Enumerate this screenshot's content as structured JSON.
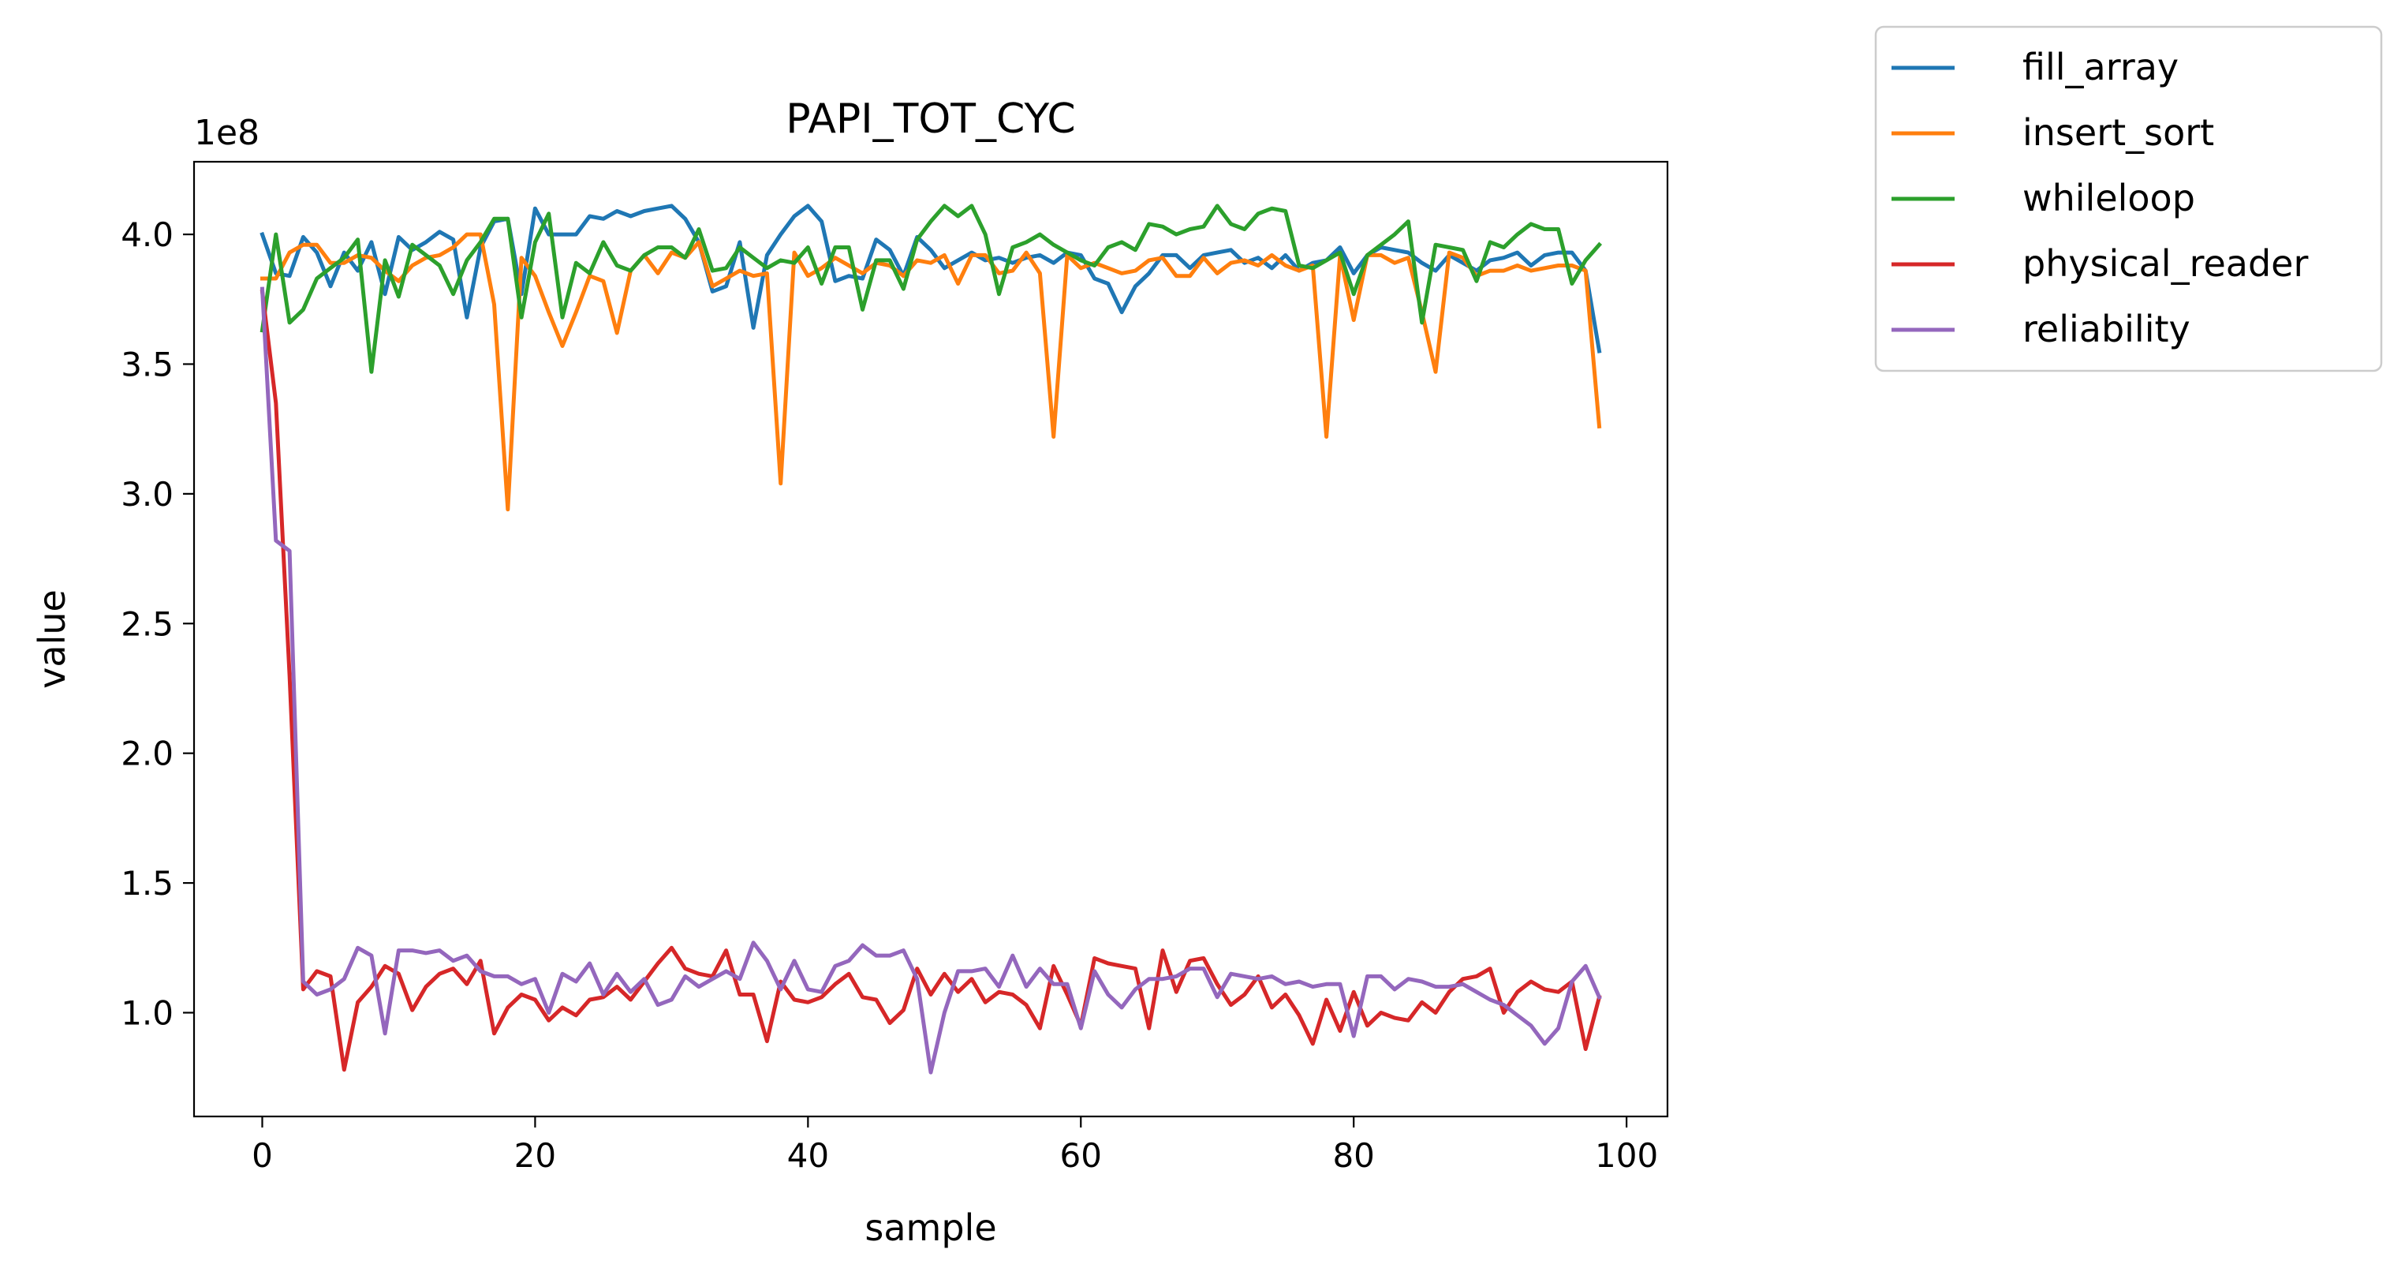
{
  "chart_data": {
    "type": "line",
    "title": "PAPI_TOT_CYC",
    "xlabel": "sample",
    "ylabel": "value",
    "y_scale_label": "1e8",
    "y_multiplier": 100000000,
    "xlim": [
      -5,
      103
    ],
    "ylim": [
      0.6,
      4.28
    ],
    "xticks": [
      0,
      20,
      40,
      60,
      80,
      100
    ],
    "xtick_labels": [
      "0",
      "20",
      "40",
      "60",
      "80",
      "100"
    ],
    "yticks": [
      1.0,
      1.5,
      2.0,
      2.5,
      3.0,
      3.5,
      4.0
    ],
    "ytick_labels": [
      "1.0",
      "1.5",
      "2.0",
      "2.5",
      "3.0",
      "3.5",
      "4.0"
    ],
    "grid": false,
    "legend_position": "outside upper right",
    "x_start": 0,
    "series": [
      {
        "name": "fill_array",
        "color": "#1f77b4",
        "values": [
          4.0,
          3.85,
          3.84,
          3.99,
          3.93,
          3.8,
          3.93,
          3.86,
          3.97,
          3.77,
          3.99,
          3.94,
          3.97,
          4.01,
          3.98,
          3.68,
          3.95,
          4.05,
          4.06,
          3.77,
          4.1,
          4.0,
          4.0,
          4.0,
          4.07,
          4.06,
          4.09,
          4.07,
          4.09,
          4.1,
          4.11,
          4.06,
          3.97,
          3.78,
          3.8,
          3.97,
          3.64,
          3.92,
          4.0,
          4.07,
          4.11,
          4.05,
          3.82,
          3.84,
          3.83,
          3.98,
          3.94,
          3.84,
          3.99,
          3.94,
          3.87,
          3.9,
          3.93,
          3.9,
          3.91,
          3.89,
          3.91,
          3.92,
          3.89,
          3.93,
          3.92,
          3.83,
          3.81,
          3.7,
          3.8,
          3.85,
          3.92,
          3.92,
          3.87,
          3.92,
          3.93,
          3.94,
          3.89,
          3.91,
          3.87,
          3.92,
          3.86,
          3.89,
          3.9,
          3.95,
          3.85,
          3.92,
          3.95,
          3.94,
          3.93,
          3.89,
          3.86,
          3.92,
          3.89,
          3.86,
          3.9,
          3.91,
          3.93,
          3.88,
          3.92,
          3.93,
          3.93,
          3.86,
          3.55
        ]
      },
      {
        "name": "insert_sort",
        "color": "#ff7f0e",
        "values": [
          3.83,
          3.83,
          3.93,
          3.96,
          3.96,
          3.89,
          3.89,
          3.92,
          3.91,
          3.86,
          3.82,
          3.88,
          3.91,
          3.92,
          3.95,
          4.0,
          4.0,
          3.73,
          2.94,
          3.91,
          3.84,
          3.7,
          3.57,
          3.7,
          3.84,
          3.82,
          3.62,
          3.86,
          3.92,
          3.85,
          3.93,
          3.91,
          3.97,
          3.8,
          3.83,
          3.86,
          3.84,
          3.85,
          3.04,
          3.93,
          3.84,
          3.87,
          3.91,
          3.88,
          3.85,
          3.89,
          3.88,
          3.84,
          3.9,
          3.89,
          3.92,
          3.81,
          3.92,
          3.92,
          3.85,
          3.86,
          3.93,
          3.85,
          3.22,
          3.92,
          3.87,
          3.89,
          3.87,
          3.85,
          3.86,
          3.9,
          3.91,
          3.84,
          3.84,
          3.91,
          3.85,
          3.89,
          3.9,
          3.88,
          3.92,
          3.88,
          3.86,
          3.88,
          3.22,
          3.92,
          3.67,
          3.92,
          3.92,
          3.89,
          3.91,
          3.7,
          3.47,
          3.93,
          3.91,
          3.84,
          3.86,
          3.86,
          3.88,
          3.86,
          3.87,
          3.88,
          3.88,
          3.86,
          3.26
        ]
      },
      {
        "name": "whileloop",
        "color": "#2ca02c",
        "values": [
          3.63,
          4.0,
          3.66,
          3.71,
          3.83,
          3.87,
          3.91,
          3.98,
          3.47,
          3.9,
          3.76,
          3.96,
          3.92,
          3.88,
          3.77,
          3.9,
          3.97,
          4.06,
          4.06,
          3.68,
          3.97,
          4.08,
          3.68,
          3.89,
          3.85,
          3.97,
          3.88,
          3.86,
          3.92,
          3.95,
          3.95,
          3.91,
          4.02,
          3.86,
          3.87,
          3.95,
          3.91,
          3.87,
          3.9,
          3.89,
          3.95,
          3.81,
          3.95,
          3.95,
          3.71,
          3.9,
          3.9,
          3.79,
          3.98,
          4.05,
          4.11,
          4.07,
          4.11,
          4.0,
          3.77,
          3.95,
          3.97,
          4.0,
          3.96,
          3.93,
          3.9,
          3.88,
          3.95,
          3.97,
          3.94,
          4.04,
          4.03,
          4.0,
          4.02,
          4.03,
          4.11,
          4.04,
          4.02,
          4.08,
          4.1,
          4.09,
          3.88,
          3.87,
          3.9,
          3.93,
          3.77,
          3.92,
          3.96,
          4.0,
          4.05,
          3.66,
          3.96,
          3.95,
          3.94,
          3.82,
          3.97,
          3.95,
          4.0,
          4.04,
          4.02,
          4.02,
          3.81,
          3.9,
          3.96
        ]
      },
      {
        "name": "physical_reader",
        "color": "#d62728",
        "values": [
          3.78,
          3.35,
          2.3,
          1.09,
          1.16,
          1.14,
          0.78,
          1.04,
          1.1,
          1.18,
          1.15,
          1.01,
          1.1,
          1.15,
          1.17,
          1.11,
          1.2,
          0.92,
          1.02,
          1.07,
          1.05,
          0.97,
          1.02,
          0.99,
          1.05,
          1.06,
          1.1,
          1.05,
          1.12,
          1.19,
          1.25,
          1.17,
          1.15,
          1.14,
          1.24,
          1.07,
          1.07,
          0.89,
          1.12,
          1.05,
          1.04,
          1.06,
          1.11,
          1.15,
          1.06,
          1.05,
          0.96,
          1.01,
          1.17,
          1.07,
          1.15,
          1.08,
          1.13,
          1.04,
          1.08,
          1.07,
          1.03,
          0.94,
          1.18,
          1.07,
          0.95,
          1.21,
          1.19,
          1.18,
          1.17,
          0.94,
          1.24,
          1.08,
          1.2,
          1.21,
          1.11,
          1.03,
          1.07,
          1.14,
          1.02,
          1.07,
          0.99,
          0.88,
          1.05,
          0.93,
          1.08,
          0.95,
          1.0,
          0.98,
          0.97,
          1.04,
          1.0,
          1.08,
          1.13,
          1.14,
          1.17,
          1.0,
          1.08,
          1.12,
          1.09,
          1.08,
          1.12,
          0.86,
          1.06
        ]
      },
      {
        "name": "reliability",
        "color": "#9467bd",
        "values": [
          3.79,
          2.82,
          2.78,
          1.12,
          1.07,
          1.09,
          1.13,
          1.25,
          1.22,
          0.92,
          1.24,
          1.24,
          1.23,
          1.24,
          1.2,
          1.22,
          1.16,
          1.14,
          1.14,
          1.11,
          1.13,
          1.0,
          1.15,
          1.12,
          1.19,
          1.07,
          1.15,
          1.08,
          1.13,
          1.03,
          1.05,
          1.14,
          1.1,
          1.13,
          1.16,
          1.13,
          1.27,
          1.2,
          1.09,
          1.2,
          1.09,
          1.08,
          1.18,
          1.2,
          1.26,
          1.22,
          1.22,
          1.24,
          1.13,
          0.77,
          1.0,
          1.16,
          1.16,
          1.17,
          1.1,
          1.22,
          1.1,
          1.17,
          1.11,
          1.11,
          0.94,
          1.16,
          1.07,
          1.02,
          1.09,
          1.13,
          1.13,
          1.14,
          1.17,
          1.17,
          1.06,
          1.15,
          1.14,
          1.13,
          1.14,
          1.11,
          1.12,
          1.1,
          1.11,
          1.11,
          0.91,
          1.14,
          1.14,
          1.09,
          1.13,
          1.12,
          1.1,
          1.1,
          1.11,
          1.08,
          1.05,
          1.03,
          0.99,
          0.95,
          0.88,
          0.94,
          1.12,
          1.18,
          1.06
        ]
      }
    ]
  }
}
